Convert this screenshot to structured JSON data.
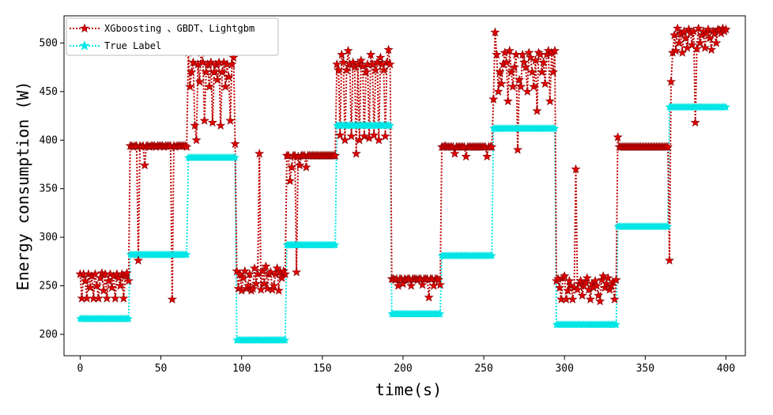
{
  "chart_data": {
    "type": "line",
    "title": "",
    "xlabel": "time(s)",
    "ylabel": "Energy consumption (W)",
    "xlim": [
      -10,
      412
    ],
    "ylim": [
      178,
      528
    ],
    "xticks": [
      0,
      50,
      100,
      150,
      200,
      250,
      300,
      350,
      400
    ],
    "yticks": [
      200,
      250,
      300,
      350,
      400,
      450,
      500
    ],
    "legend_position": "top-left",
    "series": [
      {
        "name": "XGboosting 、GBDT、Lightgbm",
        "color": "#c00000",
        "line_style": "dotted",
        "marker": "star",
        "segments": [
          {
            "x_start": 0,
            "x_end": 30,
            "values": [
              262,
              237,
              262,
              255,
              237,
              262,
              248,
              260,
              237,
              262,
              250,
              237,
              258,
              263,
              245,
              262,
              237,
              255,
              262,
              248,
              260,
              237,
              262,
              258,
              250,
              262,
              237,
              260,
              263,
              255
            ]
          },
          {
            "x_start": 31,
            "x_end": 66,
            "values": [
              394,
              394,
              393,
              394,
              394,
              276,
              394,
              393,
              394,
              374,
              394,
              394,
              393,
              394,
              394,
              394,
              393,
              394,
              394,
              394,
              394,
              393,
              394,
              394,
              394,
              394,
              236,
              394,
              393,
              394,
              394,
              394,
              394,
              394,
              394,
              393
            ]
          },
          {
            "x_start": 67,
            "x_end": 96,
            "values": [
              490,
              455,
              470,
              480,
              415,
              400,
              478,
              460,
              490,
              480,
              420,
              470,
              478,
              455,
              480,
              418,
              470,
              478,
              462,
              480,
              415,
              470,
              480,
              455,
              478,
              465,
              420,
              478,
              485,
              396
            ]
          },
          {
            "x_start": 97,
            "x_end": 127,
            "values": [
              265,
              247,
              262,
              245,
              258,
              265,
              247,
              250,
              262,
              245,
              247,
              268,
              252,
              262,
              386,
              246,
              265,
              252,
              270,
              247,
              262,
              264,
              246,
              250,
              262,
              268,
              245,
              264,
              258,
              265,
              262
            ]
          },
          {
            "x_start": 128,
            "x_end": 158,
            "values": [
              384,
              384,
              358,
              372,
              384,
              384,
              264,
              383,
              374,
              384,
              384,
              384,
              372,
              384,
              384,
              384,
              384,
              384,
              384,
              384,
              384,
              384,
              384,
              384,
              384,
              384,
              384,
              384,
              384,
              384,
              384
            ]
          },
          {
            "x_start": 159,
            "x_end": 192,
            "values": [
              478,
              472,
              405,
              488,
              480,
              400,
              472,
              492,
              478,
              404,
              480,
              475,
              386,
              478,
              400,
              482,
              476,
              404,
              470,
              478,
              402,
              488,
              478,
              405,
              472,
              480,
              400,
              485,
              478,
              472,
              404,
              480,
              493,
              478
            ]
          },
          {
            "x_start": 193,
            "x_end": 223,
            "values": [
              257,
              257,
              256,
              257,
              250,
              257,
              257,
              252,
              257,
              256,
              257,
              257,
              250,
              257,
              257,
              257,
              256,
              257,
              257,
              251,
              257,
              257,
              257,
              238,
              257,
              257,
              250,
              257,
              257,
              256,
              251
            ]
          },
          {
            "x_start": 224,
            "x_end": 255,
            "values": [
              393,
              393,
              394,
              393,
              393,
              393,
              393,
              393,
              386,
              393,
              393,
              393,
              393,
              393,
              393,
              383,
              393,
              393,
              393,
              393,
              393,
              393,
              393,
              393,
              393,
              393,
              393,
              393,
              383,
              393,
              393,
              393
            ]
          },
          {
            "x_start": 256,
            "x_end": 294,
            "values": [
              442,
              511,
              488,
              450,
              470,
              458,
              478,
              490,
              480,
              440,
              492,
              470,
              455,
              475,
              488,
              390,
              462,
              455,
              488,
              480,
              475,
              450,
              490,
              485,
              470,
              455,
              482,
              430,
              490,
              488,
              470,
              480,
              458,
              488,
              492,
              440,
              490,
              470,
              492
            ]
          },
          {
            "x_start": 295,
            "x_end": 332,
            "values": [
              255,
              257,
              248,
              236,
              258,
              260,
              236,
              245,
              255,
              250,
              236,
              248,
              370,
              246,
              252,
              255,
              240,
              250,
              254,
              258,
              246,
              236,
              252,
              248,
              255,
              250,
              240,
              234,
              256,
              260,
              248,
              252,
              258,
              246,
              250,
              254,
              236,
              256
            ]
          },
          {
            "x_start": 333,
            "x_end": 364,
            "values": [
              403,
              393,
              393,
              393,
              393,
              393,
              393,
              393,
              393,
              393,
              393,
              393,
              393,
              393,
              393,
              393,
              393,
              393,
              393,
              393,
              393,
              393,
              393,
              393,
              393,
              393,
              393,
              393,
              393,
              393,
              393,
              393
            ]
          },
          {
            "x_start": 365,
            "x_end": 400,
            "values": [
              276,
              460,
              490,
              508,
              492,
              515,
              500,
              510,
              490,
              512,
              505,
              495,
              514,
              510,
              498,
              512,
              418,
              494,
              515,
              500,
              508,
              512,
              495,
              510,
              514,
              505,
              493,
              512,
              510,
              500,
              514,
              513,
              510,
              515,
              512,
              514
            ]
          }
        ]
      },
      {
        "name": "True Label",
        "color": "#00e5e5",
        "line_style": "dotted",
        "marker": "star",
        "steps": [
          {
            "x_start": 0,
            "x_end": 30,
            "value": 216
          },
          {
            "x_start": 31,
            "x_end": 66,
            "value": 282
          },
          {
            "x_start": 67,
            "x_end": 96,
            "value": 382
          },
          {
            "x_start": 97,
            "x_end": 127,
            "value": 194
          },
          {
            "x_start": 128,
            "x_end": 158,
            "value": 292
          },
          {
            "x_start": 159,
            "x_end": 192,
            "value": 415
          },
          {
            "x_start": 193,
            "x_end": 223,
            "value": 221
          },
          {
            "x_start": 224,
            "x_end": 255,
            "value": 281
          },
          {
            "x_start": 256,
            "x_end": 294,
            "value": 412
          },
          {
            "x_start": 295,
            "x_end": 332,
            "value": 210
          },
          {
            "x_start": 333,
            "x_end": 364,
            "value": 311
          },
          {
            "x_start": 365,
            "x_end": 400,
            "value": 434
          }
        ]
      }
    ]
  }
}
